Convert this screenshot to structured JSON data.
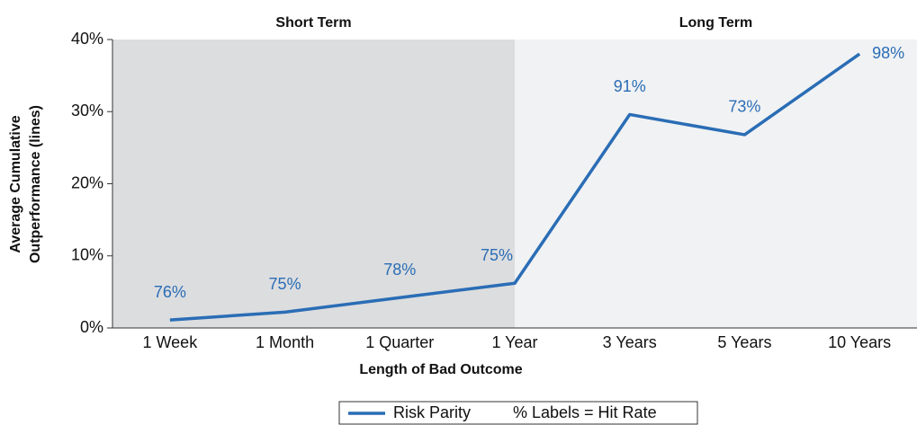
{
  "chart_data": {
    "type": "line",
    "categories": [
      "1 Week",
      "1 Month",
      "1 Quarter",
      "1 Year",
      "3 Years",
      "5 Years",
      "10 Years"
    ],
    "series": [
      {
        "name": "Risk Parity",
        "color": "#2a6db5",
        "values": [
          1.1,
          2.2,
          4.2,
          6.2,
          29.6,
          26.8,
          38.0
        ]
      }
    ],
    "annotations": [
      "76%",
      "75%",
      "78%",
      "75%",
      "91%",
      "73%",
      "98%"
    ],
    "regions": [
      {
        "label": "Short Term",
        "from": "1 Week",
        "to": "1 Year",
        "color": "#dcdddf"
      },
      {
        "label": "Long Term",
        "from": "1 Year",
        "to": "10 Years",
        "color": "#f1f2f4"
      }
    ],
    "xlabel": "Length of Bad Outcome",
    "ylabel": [
      "Average Cumulative",
      "Outperformance (lines)"
    ],
    "legend_note": "% Labels = Hit Rate",
    "ylim": [
      0,
      40
    ],
    "yticks": [
      {
        "value": 0,
        "label": "0%"
      },
      {
        "value": 10,
        "label": "10%"
      },
      {
        "value": 20,
        "label": "20%"
      },
      {
        "value": 30,
        "label": "30%"
      },
      {
        "value": 40,
        "label": "40%"
      }
    ]
  }
}
